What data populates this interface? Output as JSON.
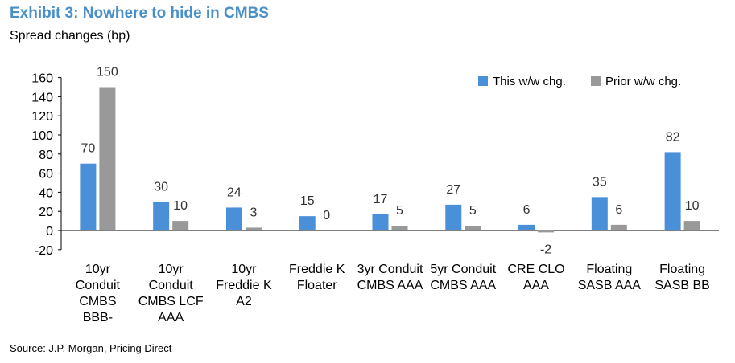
{
  "title": "Exhibit 3: Nowhere to hide in CMBS",
  "subtitle": "Spread changes (bp)",
  "source": "Source: J.P. Morgan, Pricing Direct",
  "chart_data": {
    "type": "bar",
    "categories": [
      [
        "10yr",
        "Conduit",
        "CMBS",
        "BBB-"
      ],
      [
        "10yr",
        "Conduit",
        "CMBS LCF",
        "AAA"
      ],
      [
        "10yr",
        "Freddie K",
        "A2"
      ],
      [
        "Freddie K",
        "Floater"
      ],
      [
        "3yr Conduit",
        "CMBS AAA"
      ],
      [
        "5yr Conduit",
        "CMBS AAA"
      ],
      [
        "CRE CLO",
        "AAA"
      ],
      [
        "Floating",
        "SASB AAA"
      ],
      [
        "Floating",
        "SASB BB"
      ]
    ],
    "series": [
      {
        "name": "This w/w chg.",
        "color": "#4a90d9",
        "values": [
          70,
          30,
          24,
          15,
          17,
          27,
          6,
          35,
          82
        ]
      },
      {
        "name": "Prior w/w chg.",
        "color": "#999999",
        "values": [
          150,
          10,
          3,
          0,
          5,
          5,
          -2,
          6,
          10
        ]
      }
    ],
    "ylim": [
      -20,
      160
    ],
    "yticks": [
      -20,
      0,
      20,
      40,
      60,
      80,
      100,
      120,
      140,
      160
    ],
    "grid": false,
    "legend": "top-right"
  }
}
